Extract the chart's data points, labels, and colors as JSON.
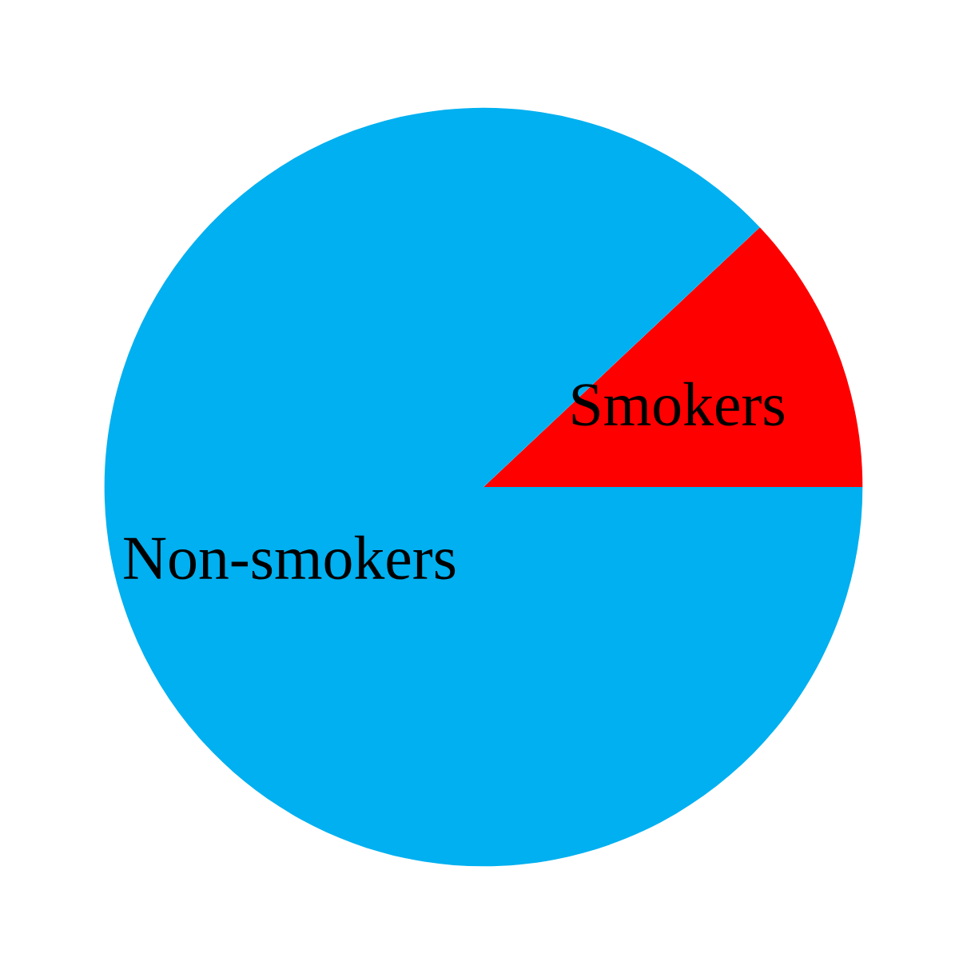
{
  "chart_data": {
    "type": "pie",
    "categories": [
      "Smokers",
      "Non-smokers"
    ],
    "values": [
      12,
      88
    ],
    "colors": [
      "#ff0000",
      "#00b0f0"
    ]
  }
}
